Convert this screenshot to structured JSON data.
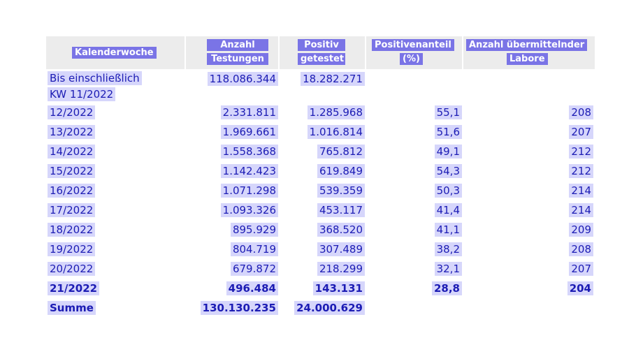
{
  "headers": [
    "Kalenderwoche",
    "Anzahl Testungen",
    "Positiv getestet",
    "Positivenanteil (%)",
    "Anzahl übermittelnder Labore"
  ],
  "header_lines": [
    [
      "Kalenderwoche"
    ],
    [
      "Anzahl",
      "Testungen"
    ],
    [
      "Positiv",
      "getestet"
    ],
    [
      "Positivenanteil",
      "(%)"
    ],
    [
      "Anzahl übermittelnder",
      "Labore"
    ]
  ],
  "first_row": {
    "week_line1": "Bis einschließlich",
    "week_line2": "KW 11/2022",
    "tests": "118.086.344",
    "positive": "18.282.271"
  },
  "rows": [
    {
      "week": "12/2022",
      "tests": "2.331.811",
      "positive": "1.285.968",
      "share": "55,1",
      "labs": "208"
    },
    {
      "week": "13/2022",
      "tests": "1.969.661",
      "positive": "1.016.814",
      "share": "51,6",
      "labs": "207"
    },
    {
      "week": "14/2022",
      "tests": "1.558.368",
      "positive": "765.812",
      "share": "49,1",
      "labs": "212"
    },
    {
      "week": "15/2022",
      "tests": "1.142.423",
      "positive": "619.849",
      "share": "54,3",
      "labs": "212"
    },
    {
      "week": "16/2022",
      "tests": "1.071.298",
      "positive": "539.359",
      "share": "50,3",
      "labs": "214"
    },
    {
      "week": "17/2022",
      "tests": "1.093.326",
      "positive": "453.117",
      "share": "41,4",
      "labs": "214"
    },
    {
      "week": "18/2022",
      "tests": "895.929",
      "positive": "368.520",
      "share": "41,1",
      "labs": "209"
    },
    {
      "week": "19/2022",
      "tests": "804.719",
      "positive": "307.489",
      "share": "38,2",
      "labs": "208"
    },
    {
      "week": "20/2022",
      "tests": "679.872",
      "positive": "218.299",
      "share": "32,1",
      "labs": "207"
    },
    {
      "week": "21/2022",
      "tests": "496.484",
      "positive": "143.131",
      "share": "28,8",
      "labs": "204"
    }
  ],
  "sum_row": {
    "week": "Summe",
    "tests": "130.130.235",
    "positive": "24.000.629"
  },
  "colors": {
    "text": "#1c1cb4",
    "header_label_bg": "#7a74e6",
    "header_bg": "#ececec",
    "cell_highlight": "#d6d6fb"
  }
}
